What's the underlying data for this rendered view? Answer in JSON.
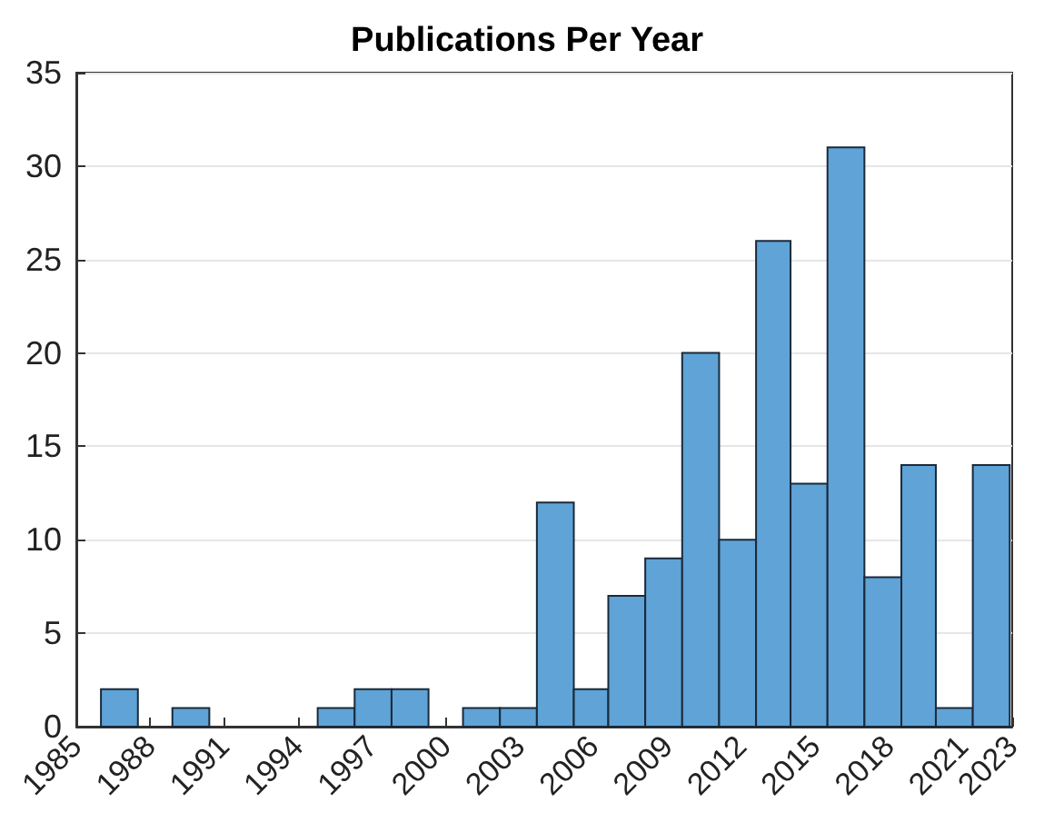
{
  "chart_data": {
    "type": "histogram",
    "title": "Publications Per Year",
    "bins": [
      1986.0,
      1987.5,
      1988.9,
      1990.4,
      1994.8,
      1996.3,
      1997.8,
      1999.3,
      2000.7,
      2002.2,
      2003.7,
      2005.2,
      2006.6,
      2008.1,
      2009.6,
      2011.1,
      2012.6,
      2014.0,
      2015.5,
      2017.0,
      2018.5,
      2019.9,
      2021.4,
      2022.9
    ],
    "values": [
      2,
      0,
      1,
      0,
      1,
      2,
      2,
      0,
      1,
      1,
      12,
      2,
      7,
      9,
      20,
      10,
      26,
      13,
      31,
      8,
      14,
      1,
      14
    ],
    "color": "#5fa3d7",
    "xlim": [
      1985,
      2023
    ],
    "xticks": [
      1985,
      1988,
      1991,
      1994,
      1997,
      2000,
      2003,
      2006,
      2009,
      2012,
      2015,
      2018,
      2021,
      2023
    ],
    "ylim": [
      0,
      35
    ],
    "yticks": [
      0,
      5,
      10,
      15,
      20,
      25,
      30,
      35
    ],
    "grid": "y"
  }
}
